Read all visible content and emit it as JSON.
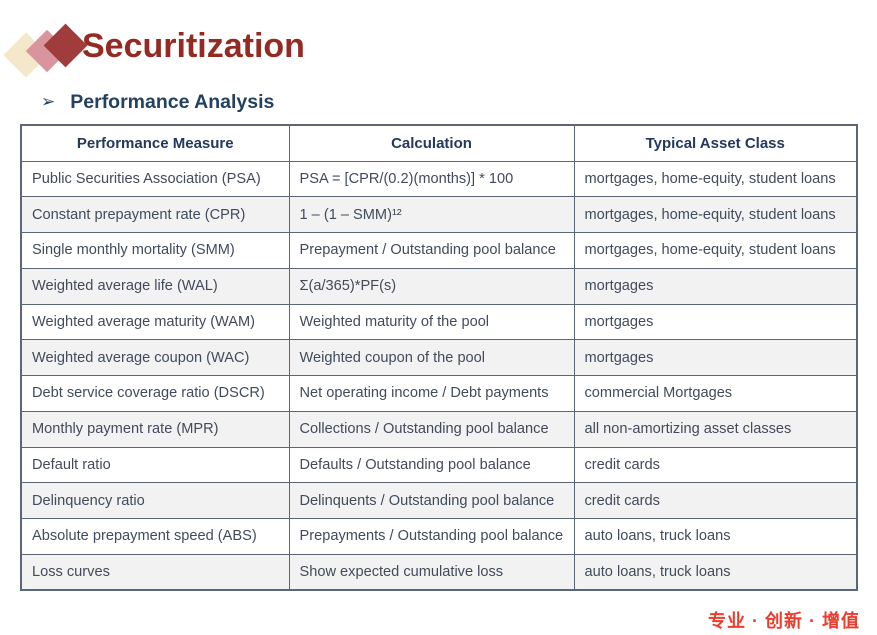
{
  "page": {
    "title": "Securitization",
    "bullet_glyph": "➢",
    "section_heading": "Performance Analysis",
    "footer_text": "专业 · 创新 · 增值"
  },
  "colors": {
    "title_maroon": "#942a22",
    "heading_navy": "#24415f",
    "table_border": "#5b6777",
    "table_header_text": "#223a5e",
    "cell_text": "#404b5c",
    "row_alt_background": "#f2f2f2",
    "footer_red": "#ed3b2c",
    "logo_diamond_cream": "#f5e7ca",
    "logo_diamond_pink": "#d9949e",
    "logo_diamond_maroon": "#a13c3c"
  },
  "icons": {
    "logo": "three-overlapping-diamonds",
    "bullet": "arrowhead-right"
  },
  "table": {
    "columns": [
      "Performance Measure",
      "Calculation",
      "Typical Asset Class"
    ],
    "rows": [
      [
        "Public Securities Association (PSA)",
        "PSA = [CPR/(0.2)(months)] * 100",
        "mortgages, home-equity, student loans"
      ],
      [
        "Constant prepayment rate (CPR)",
        "1 – (1 – SMM)¹²",
        "mortgages, home-equity, student loans"
      ],
      [
        "Single monthly mortality (SMM)",
        "Prepayment / Outstanding pool balance",
        "mortgages, home-equity, student loans"
      ],
      [
        "Weighted average life (WAL)",
        "Σ(a/365)*PF(s)",
        "mortgages"
      ],
      [
        "Weighted average maturity (WAM)",
        "Weighted maturity of the pool",
        "mortgages"
      ],
      [
        "Weighted average coupon (WAC)",
        "Weighted coupon of the pool",
        "mortgages"
      ],
      [
        "Debt service coverage ratio (DSCR)",
        "Net operating income / Debt payments",
        "commercial Mortgages"
      ],
      [
        "Monthly payment rate (MPR)",
        "Collections / Outstanding pool balance",
        "all non-amortizing asset classes"
      ],
      [
        "Default ratio",
        "Defaults / Outstanding pool balance",
        "credit cards"
      ],
      [
        "Delinquency ratio",
        "Delinquents / Outstanding pool balance",
        "credit cards"
      ],
      [
        "Absolute prepayment speed (ABS)",
        "Prepayments / Outstanding pool balance",
        "auto loans, truck loans"
      ],
      [
        "Loss curves",
        "Show expected cumulative loss",
        "auto loans, truck loans"
      ]
    ]
  }
}
